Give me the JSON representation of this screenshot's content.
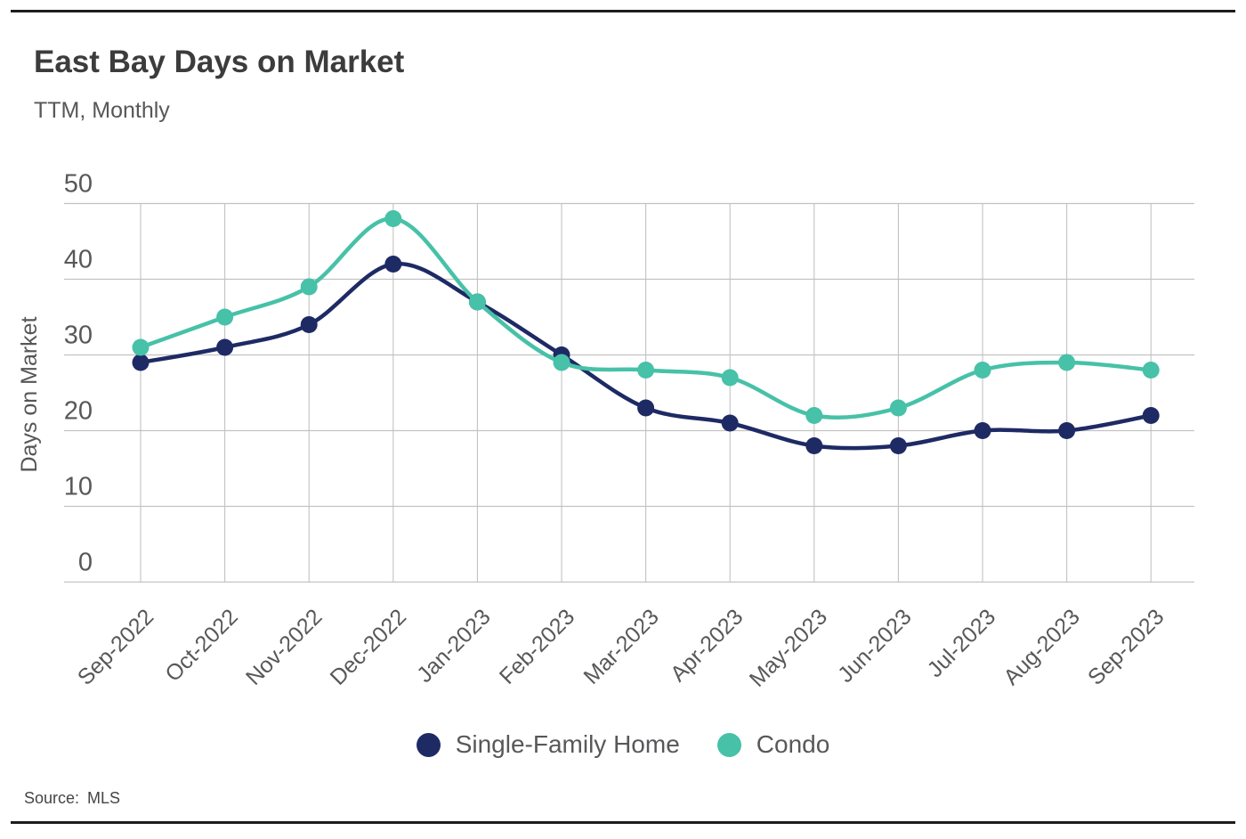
{
  "chart_data": {
    "type": "line",
    "title": "East Bay Days on Market",
    "subtitle": "TTM, Monthly",
    "ylabel": "Days on Market",
    "xlabel": "",
    "ylim": [
      0,
      50
    ],
    "yticks": [
      0,
      10,
      20,
      30,
      40,
      50
    ],
    "grid": true,
    "legend_position": "bottom",
    "categories": [
      "Sep-2022",
      "Oct-2022",
      "Nov-2022",
      "Dec-2022",
      "Jan-2023",
      "Feb-2023",
      "Mar-2023",
      "Apr-2023",
      "May-2023",
      "Jun-2023",
      "Jul-2023",
      "Aug-2023",
      "Sep-2023"
    ],
    "series": [
      {
        "name": "Single-Family Home",
        "color": "#1e2a64",
        "values": [
          29,
          31,
          34,
          42,
          37,
          30,
          23,
          21,
          18,
          18,
          20,
          20,
          22
        ]
      },
      {
        "name": "Condo",
        "color": "#47c1a8",
        "values": [
          31,
          35,
          39,
          48,
          37,
          29,
          28,
          27,
          22,
          23,
          28,
          29,
          28
        ]
      }
    ]
  },
  "footer": {
    "source_label": "Source:",
    "source_value": "MLS"
  }
}
